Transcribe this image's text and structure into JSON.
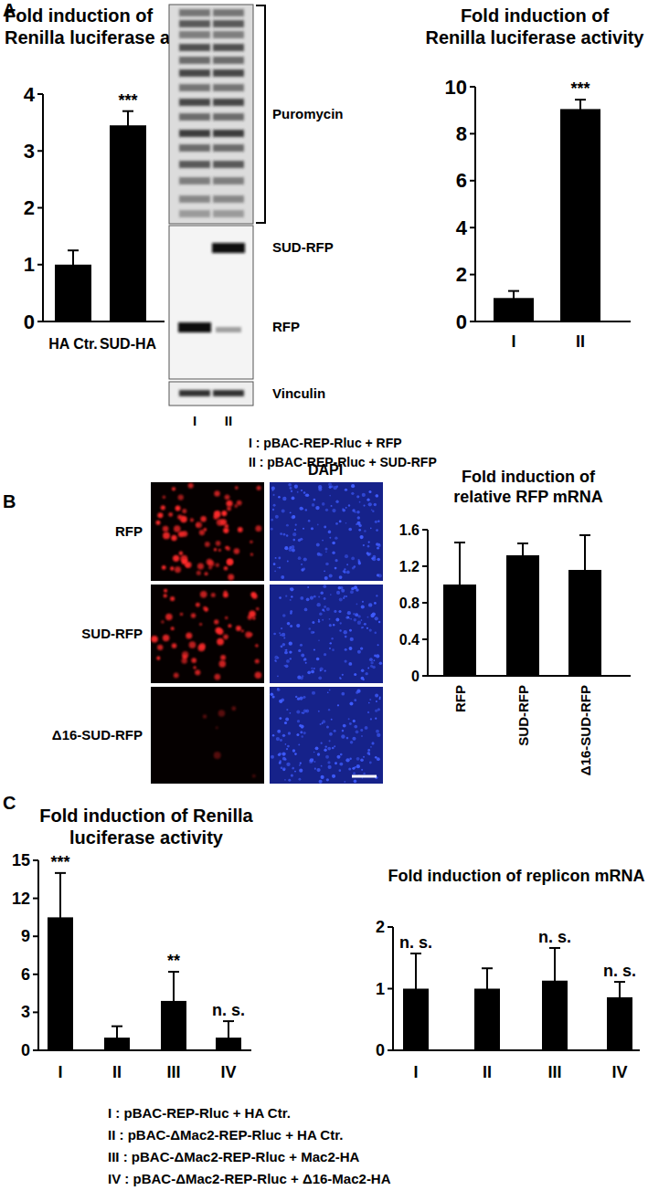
{
  "figure": {
    "panel_labels": [
      "A",
      "B",
      "C"
    ],
    "blot": {
      "lanes": [
        "I",
        "II"
      ],
      "bracket_label": "Puromycin",
      "band_labels": [
        "SUD-RFP",
        "RFP",
        "Vinculin"
      ]
    },
    "legend_A": [
      "I : pBAC-REP-Rluc + RFP",
      "II : pBAC-REP-Rluc + SUD-RFP"
    ],
    "microscopy": {
      "rows": [
        "RFP",
        "SUD-RFP",
        "Δ16-SUD-RFP"
      ],
      "column_header": "DAPI"
    },
    "legend_C": [
      "I : pBAC-REP-Rluc + HA Ctr.",
      "II : pBAC-ΔMac2-REP-Rluc + HA Ctr.",
      "III : pBAC-ΔMac2-REP-Rluc + Mac2-HA",
      "IV : pBAC-ΔMac2-REP-Rluc + Δ16-Mac2-HA"
    ]
  },
  "chart_data": [
    {
      "type": "bar",
      "title": [
        "Fold induction of",
        "Renilla luciferase activity"
      ],
      "categories": [
        "HA Ctr.",
        "SUD-HA"
      ],
      "values": [
        1.0,
        3.45
      ],
      "errors": [
        0.25,
        0.25
      ],
      "annotations": [
        null,
        "***"
      ],
      "color": "#000000",
      "ylim": [
        0,
        4
      ],
      "yticks": [
        0,
        1,
        2,
        3,
        4
      ]
    },
    {
      "type": "bar",
      "title": [
        "Fold induction of",
        "Renilla luciferase activity"
      ],
      "categories": [
        "I",
        "II"
      ],
      "values": [
        1.0,
        9.05
      ],
      "errors": [
        0.3,
        0.4
      ],
      "annotations": [
        null,
        "***"
      ],
      "color": "#000000",
      "ylim": [
        0,
        10
      ],
      "yticks": [
        0,
        2,
        4,
        6,
        8,
        10
      ]
    },
    {
      "type": "bar",
      "title": [
        "Fold induction of",
        "relative RFP mRNA"
      ],
      "categories": [
        "RFP",
        "SUD-RFP",
        "Δ16-SUD-RFP"
      ],
      "values": [
        1.0,
        1.32,
        1.16
      ],
      "errors": [
        0.46,
        0.13,
        0.38
      ],
      "annotations": [
        null,
        null,
        null
      ],
      "color": "#000000",
      "ylim": [
        0,
        1.6
      ],
      "yticks": [
        0,
        0.4,
        0.8,
        1.2,
        1.6
      ]
    },
    {
      "type": "bar",
      "title": [
        "Fold induction of Renilla",
        "luciferase activity"
      ],
      "categories": [
        "I",
        "II",
        "III",
        "IV"
      ],
      "values": [
        10.5,
        1.0,
        3.9,
        1.0
      ],
      "errors": [
        3.5,
        0.9,
        2.3,
        1.3
      ],
      "annotations": [
        "***",
        null,
        "**",
        "n. s."
      ],
      "color": "#000000",
      "ylim": [
        0,
        15
      ],
      "yticks": [
        0,
        3,
        6,
        9,
        12,
        15
      ]
    },
    {
      "type": "bar",
      "title": [
        "Fold induction of replicon mRNA"
      ],
      "categories": [
        "I",
        "II",
        "III",
        "IV"
      ],
      "values": [
        1.0,
        1.0,
        1.13,
        0.86
      ],
      "errors": [
        0.57,
        0.33,
        0.53,
        0.25
      ],
      "annotations": [
        "n. s.",
        null,
        "n. s.",
        "n. s."
      ],
      "color": "#000000",
      "ylim": [
        0,
        2
      ],
      "yticks": [
        0,
        1,
        2
      ]
    }
  ]
}
